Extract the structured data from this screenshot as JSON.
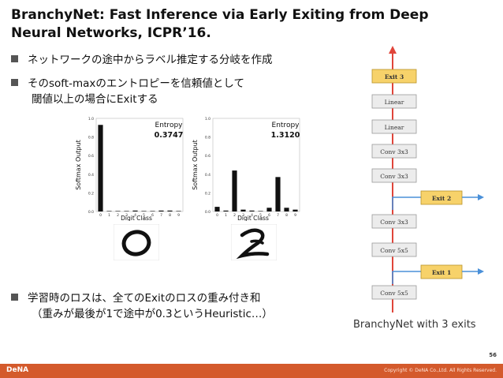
{
  "slide": {
    "title_line1": "BranchyNet: Fast Inference via Early Exiting from Deep",
    "title_line2": "Neural Networks, ICPR’16.",
    "bullets": [
      {
        "line1": "ネットワークの途中からラベル推定する分岐を作成"
      },
      {
        "line1": "そのsoft-maxのエントロピーを信頼値として",
        "line2": "閾値以上の場合にExitする"
      },
      {
        "line1": "学習時のロスは、全てのExitのロスの重み付き和",
        "line2": "（重みが最後が1で途中が0.3というHeuristic…）"
      }
    ],
    "page_number": "56",
    "footer_logo": "DeNA",
    "footer_copyright": "Copyright © DeNA Co.,Ltd. All Rights Reserved."
  },
  "diagram": {
    "caption": "BranchyNet with 3 exits",
    "layers": [
      "Exit 3",
      "Linear",
      "Linear",
      "Conv 3x3",
      "Conv 3x3",
      "Conv 3x3",
      "Conv 5x5",
      "Conv 5x5"
    ],
    "exits": [
      "Exit 2",
      "Exit 1"
    ],
    "colors": {
      "exit_fill": "#f7d26a",
      "exit_border": "#b9932b",
      "layer_fill": "#ececec",
      "layer_border": "#9a9a9a",
      "trunk": "#e0453a",
      "branch": "#4a90d9"
    }
  },
  "chart_data": [
    {
      "type": "bar",
      "annotation_label": "Entropy",
      "annotation_value": "0.3747",
      "xlabel": "Digit Class",
      "ylabel": "Softmax Output",
      "categories": [
        "0",
        "1",
        "2",
        "3",
        "4",
        "5",
        "6",
        "7",
        "8",
        "9"
      ],
      "values": [
        0.93,
        0.0,
        0.0,
        0.0,
        0.01,
        0.0,
        0.0,
        0.01,
        0.01,
        0.0
      ],
      "ylim": [
        0,
        1.0
      ],
      "yticks": [
        "0.0",
        "0.2",
        "0.4",
        "0.6",
        "0.8",
        "1.0"
      ]
    },
    {
      "type": "bar",
      "annotation_label": "Entropy",
      "annotation_value": "1.3120",
      "xlabel": "Digit Class",
      "ylabel": "Softmax Output",
      "categories": [
        "0",
        "1",
        "2",
        "3",
        "4",
        "5",
        "6",
        "7",
        "8",
        "9"
      ],
      "values": [
        0.05,
        0.01,
        0.44,
        0.02,
        0.01,
        0.0,
        0.04,
        0.37,
        0.04,
        0.02
      ],
      "ylim": [
        0,
        1.0
      ],
      "yticks": [
        "0.0",
        "0.2",
        "0.4",
        "0.6",
        "0.8",
        "1.0"
      ]
    }
  ]
}
